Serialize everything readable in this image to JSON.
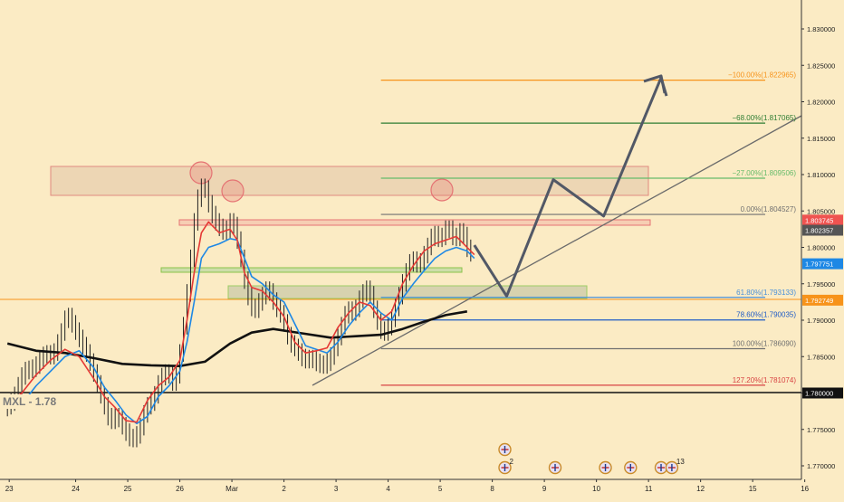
{
  "chart_data": {
    "type": "line",
    "title": "",
    "subtitle": "",
    "xlabel": "",
    "ylabel": "",
    "ylim": [
      1.766,
      1.834
    ],
    "grid": false,
    "legend": "none",
    "yticks": [
      "1.830000",
      "1.825000",
      "1.820000",
      "1.815000",
      "1.810000",
      "1.805000",
      "1.800000",
      "1.795000",
      "1.790000",
      "1.785000",
      "1.780000",
      "1.775000",
      "1.770000"
    ],
    "yvals": [
      1.83,
      1.825,
      1.82,
      1.815,
      1.81,
      1.805,
      1.8,
      1.795,
      1.79,
      1.785,
      1.78,
      1.775,
      1.77
    ],
    "xticks": [
      {
        "label": "23",
        "i": 0.5
      },
      {
        "label": "24",
        "i": 19
      },
      {
        "label": "25",
        "i": 33.5
      },
      {
        "label": "26",
        "i": 48
      },
      {
        "label": "Mar",
        "i": 62.5
      },
      {
        "label": "2",
        "i": 77
      },
      {
        "label": "3",
        "i": 91.5
      },
      {
        "label": "4",
        "i": 106
      },
      {
        "label": "5",
        "i": 120.5
      },
      {
        "label": "8",
        "i": 135
      },
      {
        "label": "9",
        "i": 149.5
      },
      {
        "label": "10",
        "i": 164
      },
      {
        "label": "11",
        "i": 178.5
      },
      {
        "label": "12",
        "i": 193
      },
      {
        "label": "15",
        "i": 207.5
      },
      {
        "label": "16",
        "i": 222
      }
    ],
    "series": [
      {
        "name": "",
        "color": "#111111",
        "width": 2.6,
        "points": [
          [
            0,
            1.7868
          ],
          [
            8,
            1.7858
          ],
          [
            16,
            1.7855
          ],
          [
            24,
            1.7848
          ],
          [
            32,
            1.784
          ],
          [
            40,
            1.7838
          ],
          [
            48,
            1.7837
          ],
          [
            55,
            1.7843
          ],
          [
            62,
            1.7868
          ],
          [
            68,
            1.7883
          ],
          [
            74,
            1.7888
          ],
          [
            82,
            1.7882
          ],
          [
            90,
            1.7876
          ],
          [
            97,
            1.7878
          ],
          [
            104,
            1.788
          ],
          [
            110,
            1.7888
          ],
          [
            116,
            1.7898
          ],
          [
            122,
            1.7907
          ],
          [
            128,
            1.7912
          ]
        ]
      },
      {
        "name": "",
        "color": "#1E88E5",
        "width": 1.6,
        "points": [
          [
            0,
            1.778
          ],
          [
            4,
            1.7785
          ],
          [
            8,
            1.781
          ],
          [
            12,
            1.783
          ],
          [
            16,
            1.785
          ],
          [
            20,
            1.7858
          ],
          [
            24,
            1.7835
          ],
          [
            27,
            1.7808
          ],
          [
            30,
            1.779
          ],
          [
            33,
            1.777
          ],
          [
            36,
            1.7758
          ],
          [
            39,
            1.7768
          ],
          [
            42,
            1.7795
          ],
          [
            45,
            1.781
          ],
          [
            48,
            1.783
          ],
          [
            50,
            1.787
          ],
          [
            52,
            1.7925
          ],
          [
            54,
            1.7985
          ],
          [
            56,
            1.8
          ],
          [
            59,
            1.8005
          ],
          [
            62,
            1.8012
          ],
          [
            64,
            1.801
          ],
          [
            66,
            1.7985
          ],
          [
            68,
            1.796
          ],
          [
            71,
            1.795
          ],
          [
            74,
            1.7935
          ],
          [
            77,
            1.7925
          ],
          [
            80,
            1.7895
          ],
          [
            83,
            1.7865
          ],
          [
            86,
            1.786
          ],
          [
            89,
            1.7855
          ],
          [
            92,
            1.787
          ],
          [
            95,
            1.7892
          ],
          [
            98,
            1.791
          ],
          [
            101,
            1.7925
          ],
          [
            104,
            1.791
          ],
          [
            107,
            1.79
          ],
          [
            110,
            1.793
          ],
          [
            113,
            1.795
          ],
          [
            116,
            1.7968
          ],
          [
            119,
            1.7985
          ],
          [
            122,
            1.7995
          ],
          [
            125,
            1.8
          ],
          [
            128,
            1.7995
          ],
          [
            130,
            1.7985
          ]
        ]
      },
      {
        "name": "",
        "color": "#E53935",
        "width": 1.6,
        "points": [
          [
            0,
            1.7785
          ],
          [
            4,
            1.78
          ],
          [
            8,
            1.7825
          ],
          [
            12,
            1.7845
          ],
          [
            16,
            1.786
          ],
          [
            20,
            1.785
          ],
          [
            24,
            1.782
          ],
          [
            27,
            1.7795
          ],
          [
            30,
            1.778
          ],
          [
            33,
            1.7762
          ],
          [
            36,
            1.776
          ],
          [
            39,
            1.779
          ],
          [
            42,
            1.781
          ],
          [
            45,
            1.7822
          ],
          [
            48,
            1.7845
          ],
          [
            50,
            1.79
          ],
          [
            52,
            1.7965
          ],
          [
            54,
            1.802
          ],
          [
            56,
            1.8035
          ],
          [
            59,
            1.802
          ],
          [
            62,
            1.8025
          ],
          [
            64,
            1.801
          ],
          [
            66,
            1.7965
          ],
          [
            68,
            1.7945
          ],
          [
            71,
            1.794
          ],
          [
            74,
            1.7925
          ],
          [
            77,
            1.7905
          ],
          [
            80,
            1.787
          ],
          [
            83,
            1.7855
          ],
          [
            86,
            1.7858
          ],
          [
            89,
            1.7862
          ],
          [
            92,
            1.789
          ],
          [
            95,
            1.791
          ],
          [
            98,
            1.7925
          ],
          [
            101,
            1.792
          ],
          [
            104,
            1.79
          ],
          [
            107,
            1.7912
          ],
          [
            110,
            1.795
          ],
          [
            113,
            1.7975
          ],
          [
            116,
            1.7995
          ],
          [
            119,
            1.8005
          ],
          [
            122,
            1.801
          ],
          [
            125,
            1.8015
          ],
          [
            128,
            1.8
          ],
          [
            130,
            1.799
          ]
        ]
      },
      {
        "name": "",
        "color": "#525866",
        "width": 3,
        "points": [
          [
            130,
            1.8003
          ],
          [
            139,
            1.7933
          ],
          [
            152,
            1.8093
          ],
          [
            166,
            1.8043
          ],
          [
            182,
            1.8233
          ],
          [
            183.5,
            1.8208
          ]
        ]
      }
    ],
    "price_path": [
      [
        0,
        1.778
      ],
      [
        2,
        1.779
      ],
      [
        5,
        1.783
      ],
      [
        8,
        1.7835
      ],
      [
        11,
        1.7855
      ],
      [
        13,
        1.785
      ],
      [
        15,
        1.7875
      ],
      [
        17,
        1.791
      ],
      [
        19,
        1.789
      ],
      [
        21,
        1.787
      ],
      [
        23,
        1.785
      ],
      [
        25,
        1.782
      ],
      [
        27,
        1.779
      ],
      [
        29,
        1.776
      ],
      [
        31,
        1.777
      ],
      [
        33,
        1.775
      ],
      [
        35,
        1.7735
      ],
      [
        37,
        1.7745
      ],
      [
        39,
        1.778
      ],
      [
        41,
        1.779
      ],
      [
        43,
        1.782
      ],
      [
        45,
        1.783
      ],
      [
        47,
        1.781
      ],
      [
        49,
        1.787
      ],
      [
        51,
        1.796
      ],
      [
        53,
        1.806
      ],
      [
        55,
        1.809
      ],
      [
        57,
        1.805
      ],
      [
        59,
        1.803
      ],
      [
        61,
        1.802
      ],
      [
        63,
        1.804
      ],
      [
        65,
        1.8
      ],
      [
        67,
        1.794
      ],
      [
        69,
        1.791
      ],
      [
        71,
        1.793
      ],
      [
        73,
        1.7945
      ],
      [
        75,
        1.792
      ],
      [
        77,
        1.7905
      ],
      [
        79,
        1.787
      ],
      [
        81,
        1.786
      ],
      [
        83,
        1.7845
      ],
      [
        85,
        1.7848
      ],
      [
        87,
        1.784
      ],
      [
        89,
        1.7838
      ],
      [
        91,
        1.7855
      ],
      [
        93,
        1.7885
      ],
      [
        95,
        1.7915
      ],
      [
        97,
        1.791
      ],
      [
        99,
        1.7935
      ],
      [
        101,
        1.7945
      ],
      [
        103,
        1.7905
      ],
      [
        105,
        1.788
      ],
      [
        107,
        1.7895
      ],
      [
        109,
        1.7925
      ],
      [
        111,
        1.796
      ],
      [
        113,
        1.7985
      ],
      [
        115,
        1.7975
      ],
      [
        117,
        1.7995
      ],
      [
        119,
        1.802
      ],
      [
        121,
        1.801
      ],
      [
        123,
        1.803
      ],
      [
        125,
        1.801
      ],
      [
        127,
        1.8025
      ],
      [
        129,
        1.799
      ],
      [
        130,
        1.7995
      ]
    ],
    "horizontal_lines": [
      {
        "label": "−100.00%(1.822965)",
        "value": 1.822965,
        "color": "#F7931A",
        "i0": 104,
        "i1": 211
      },
      {
        "label": "−68.00%(1.817065)",
        "value": 1.817065,
        "color": "#2E7D32",
        "i0": 104,
        "i1": 211
      },
      {
        "label": "−27.00%(1.809506)",
        "value": 1.809506,
        "color": "#66BB6A",
        "i0": 104,
        "i1": 211
      },
      {
        "label": "0.00%(1.804527)",
        "value": 1.804527,
        "color": "#707070",
        "i0": 104,
        "i1": 211
      },
      {
        "label": "61.80%(1.793133)",
        "value": 1.793133,
        "color": "#4A90D9",
        "i0": 104,
        "i1": 211
      },
      {
        "label": "78.60%(1.790035)",
        "value": 1.790035,
        "color": "#1E5BC6",
        "i0": 104,
        "i1": 211
      },
      {
        "label": "100.00%(1.786090)",
        "value": 1.78609,
        "color": "#707070",
        "i0": 104,
        "i1": 211
      },
      {
        "label": "127.20%(1.781074)",
        "value": 1.781074,
        "color": "#D84343",
        "i0": 104,
        "i1": 211
      }
    ],
    "annotation_text": "MXL - 1.78",
    "price_tags": [
      {
        "value": 1.803745,
        "label": "1.803745",
        "bg": "#EF5350"
      },
      {
        "value": 1.802357,
        "label": "1.802357",
        "bg": "#555555"
      },
      {
        "value": 1.797751,
        "label": "1.797751",
        "bg": "#1E88E5"
      },
      {
        "value": 1.792749,
        "label": "1.792749",
        "bg": "#F7931A"
      },
      {
        "value": 1.78,
        "label": "1.780000",
        "bg": "#111111"
      }
    ],
    "event_markers": [
      {
        "i": 138.5,
        "count": "",
        "row": 1
      },
      {
        "i": 138.5,
        "count": "2",
        "row": 2
      },
      {
        "i": 152.5,
        "count": "",
        "row": 2
      },
      {
        "i": 166.5,
        "count": "",
        "row": 2
      },
      {
        "i": 173.5,
        "count": "",
        "row": 2
      },
      {
        "i": 182,
        "count": "",
        "row": 2
      },
      {
        "i": 185,
        "count": "13",
        "row": 2
      }
    ]
  }
}
